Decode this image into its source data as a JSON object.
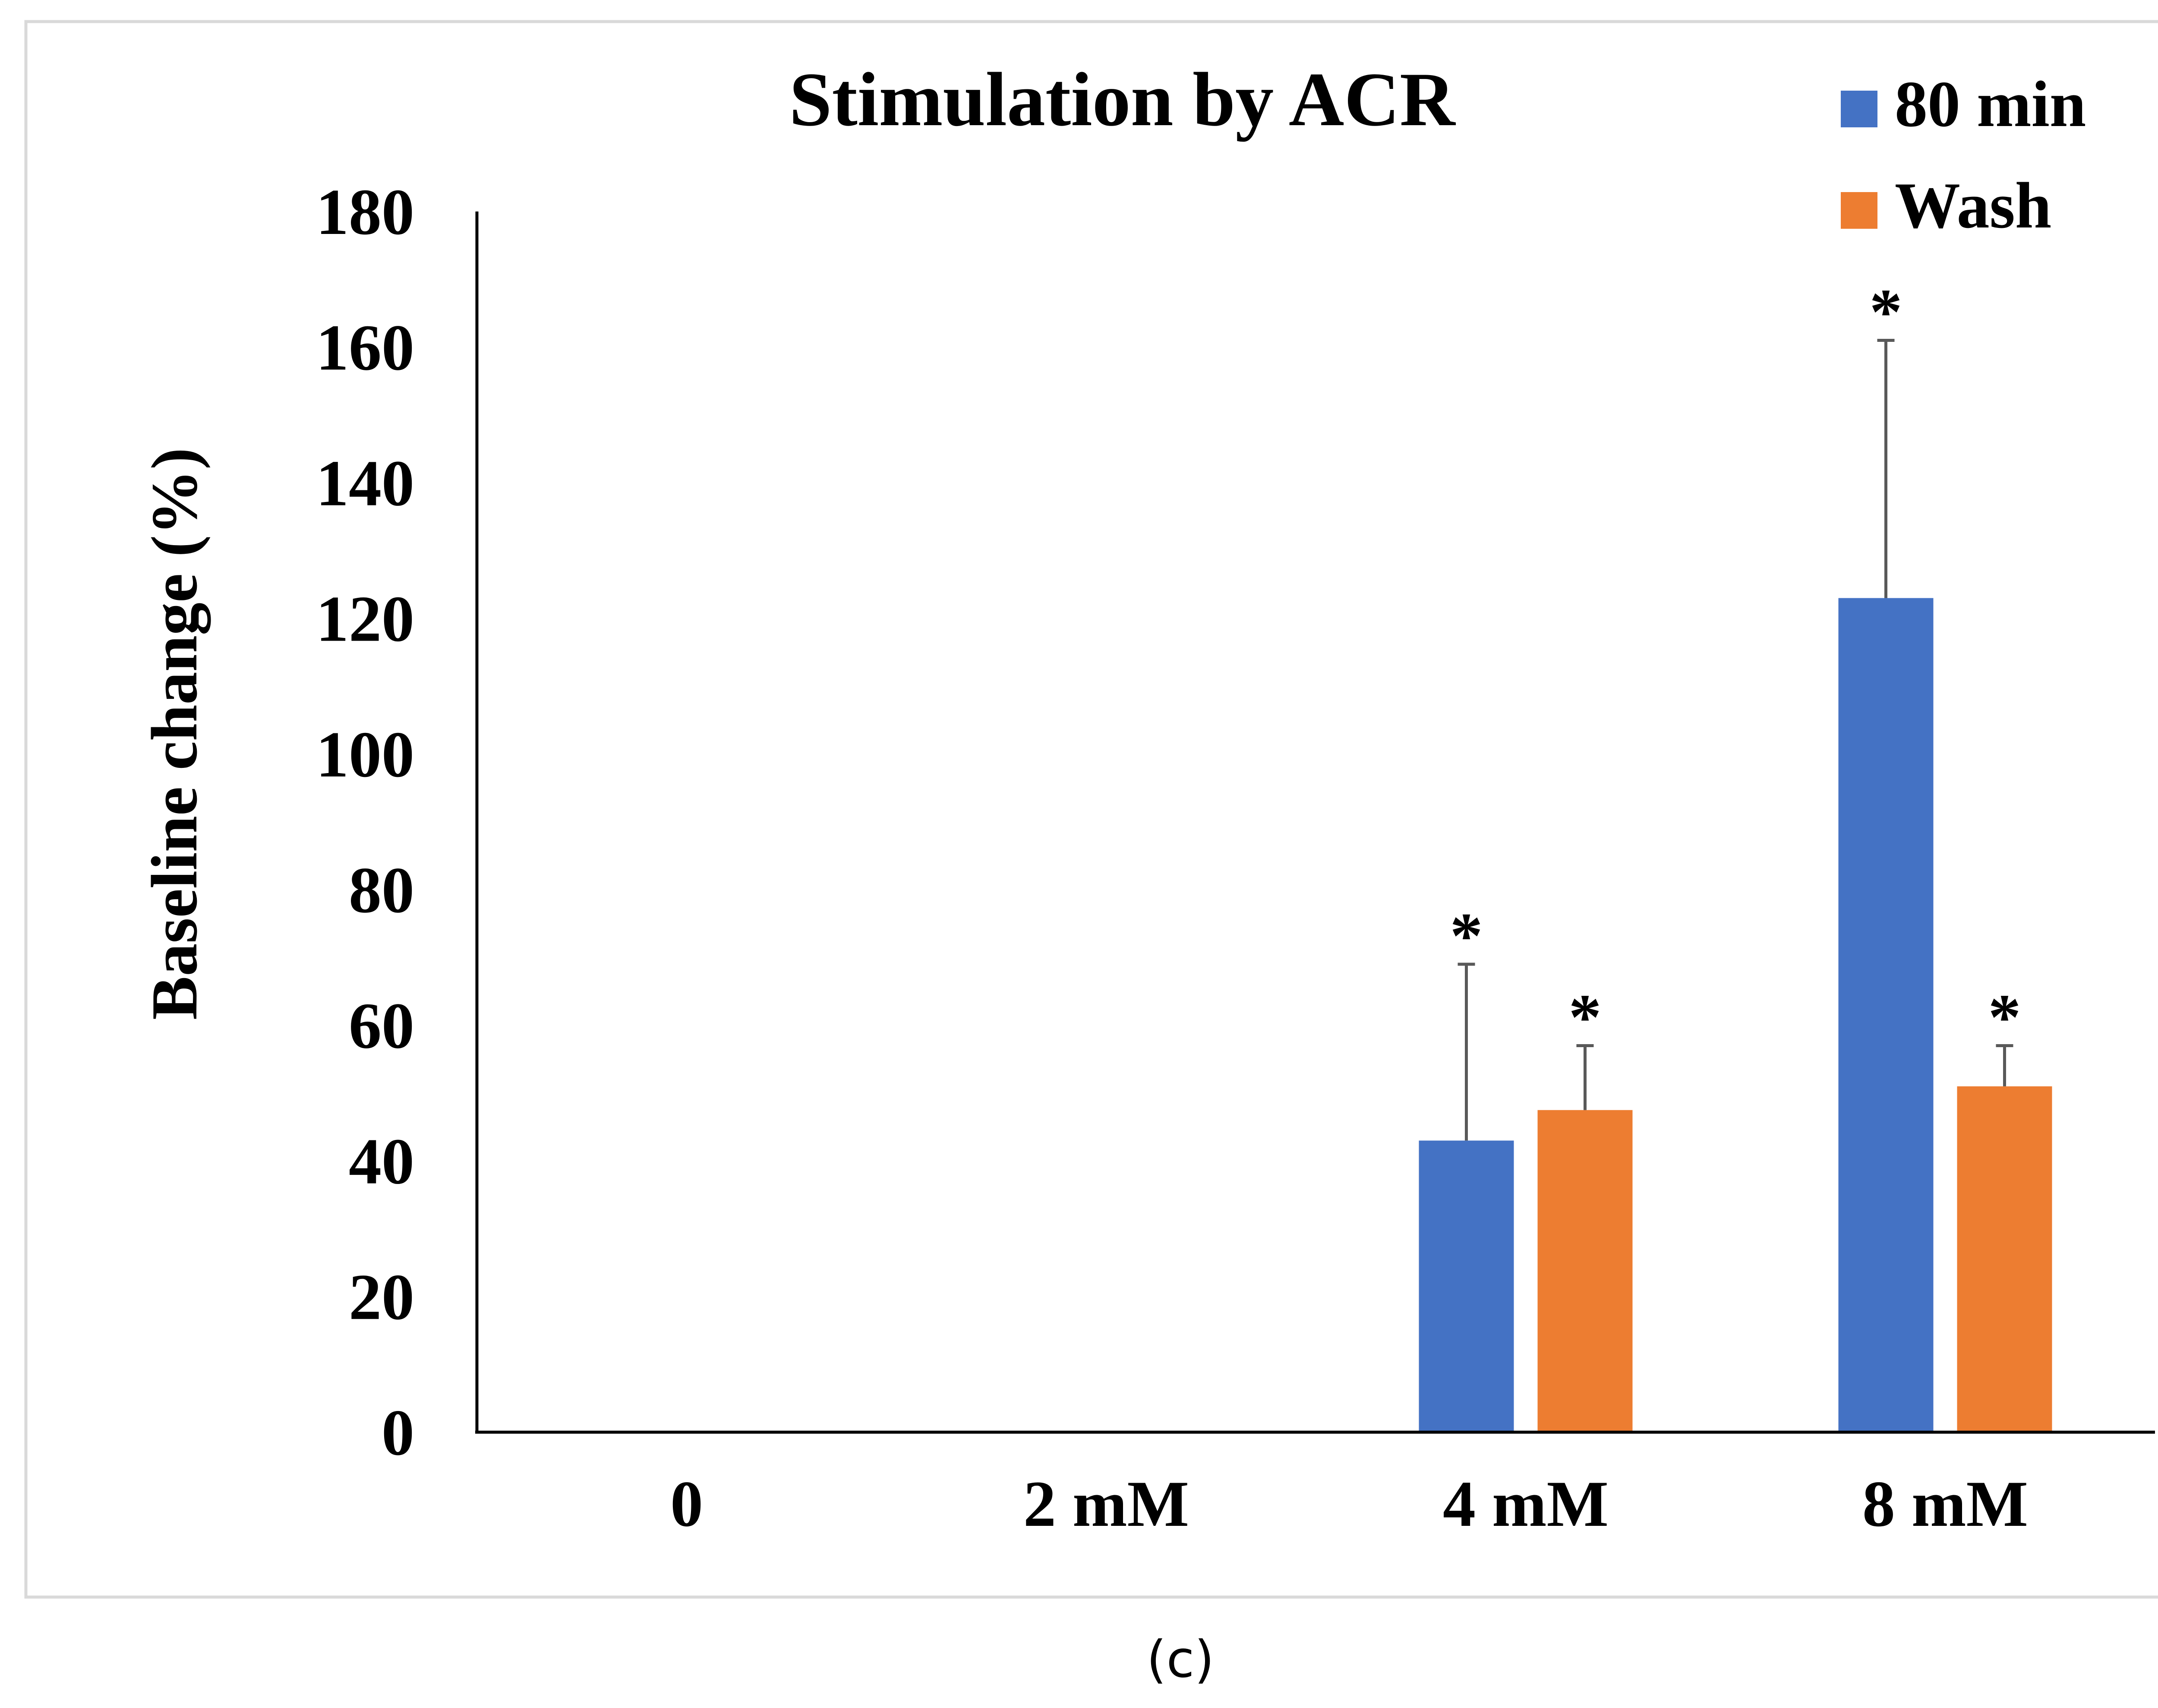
{
  "panel_label": "(c)",
  "colors": {
    "series_80min": "#4472C4",
    "series_wash": "#ED7D31",
    "axis": "#000000",
    "error_bar": "#595959",
    "frame": "#D9D9D9"
  },
  "chart_data": {
    "type": "bar",
    "title": "Stimulation by ACR",
    "xlabel": "",
    "ylabel": "Baseline change (%)",
    "categories": [
      "0",
      "2 mM",
      "4 mM",
      "8 mM"
    ],
    "ylim": [
      0,
      180
    ],
    "yticks": [
      "0",
      "20",
      "40",
      "60",
      "80",
      "100",
      "120",
      "140",
      "160",
      "180"
    ],
    "grid": false,
    "legend_position": "top-right",
    "series": [
      {
        "name": "80 min",
        "color": "#4472C4",
        "values": [
          null,
          null,
          43,
          123
        ],
        "errors": [
          null,
          null,
          26,
          38
        ],
        "annotations": [
          "",
          "",
          "*",
          "*"
        ]
      },
      {
        "name": "Wash",
        "color": "#ED7D31",
        "values": [
          null,
          null,
          47.5,
          51
        ],
        "errors": [
          null,
          null,
          9.5,
          6
        ],
        "annotations": [
          "",
          "",
          "*",
          "*"
        ]
      }
    ]
  }
}
